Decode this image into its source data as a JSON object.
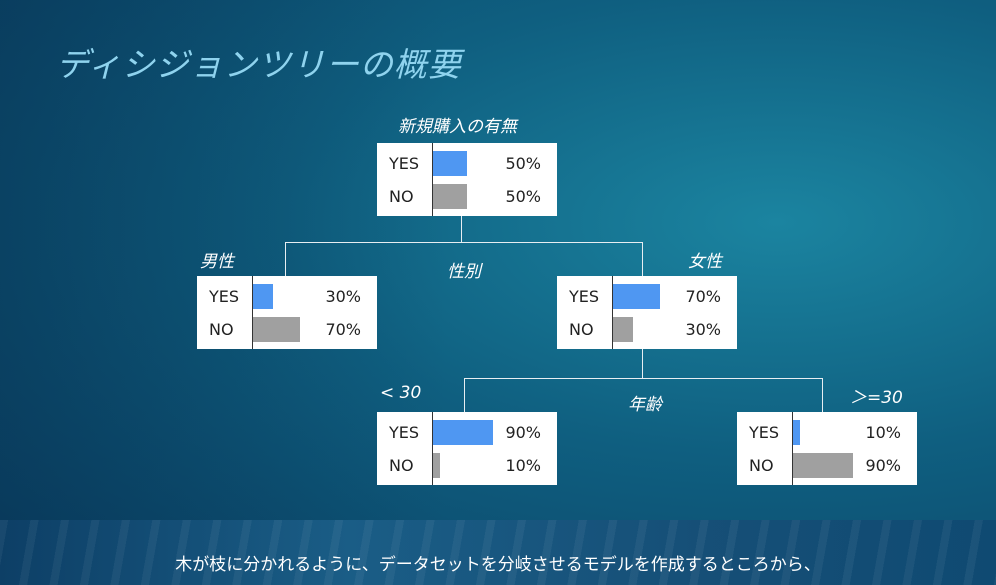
{
  "title": "ディシジョンツリーの概要",
  "root": {
    "label": "新規購入の有無",
    "yes": {
      "label": "YES",
      "pct_text": "50%",
      "pct": 50
    },
    "no": {
      "label": "NO",
      "pct_text": "50%",
      "pct": 50
    }
  },
  "split1_label": "性別",
  "male": {
    "label": "男性",
    "yes": {
      "label": "YES",
      "pct_text": "30%",
      "pct": 30
    },
    "no": {
      "label": "NO",
      "pct_text": "70%",
      "pct": 70
    }
  },
  "female": {
    "label": "女性",
    "yes": {
      "label": "YES",
      "pct_text": "70%",
      "pct": 70
    },
    "no": {
      "label": "NO",
      "pct_text": "30%",
      "pct": 30
    }
  },
  "split2_label": "年齢",
  "under30": {
    "label": "< 30",
    "yes": {
      "label": "YES",
      "pct_text": "90%",
      "pct": 90
    },
    "no": {
      "label": "NO",
      "pct_text": "10%",
      "pct": 10
    }
  },
  "over30": {
    "label": "＞=30",
    "yes": {
      "label": "YES",
      "pct_text": "10%",
      "pct": 10
    },
    "no": {
      "label": "NO",
      "pct_text": "90%",
      "pct": 90
    }
  },
  "caption": "木が枝に分かれるように、データセットを分岐させるモデルを作成するところから、",
  "colors": {
    "yes_bar": "#4f97f2",
    "no_bar": "#a0a0a0",
    "title": "#8fd3ee"
  }
}
